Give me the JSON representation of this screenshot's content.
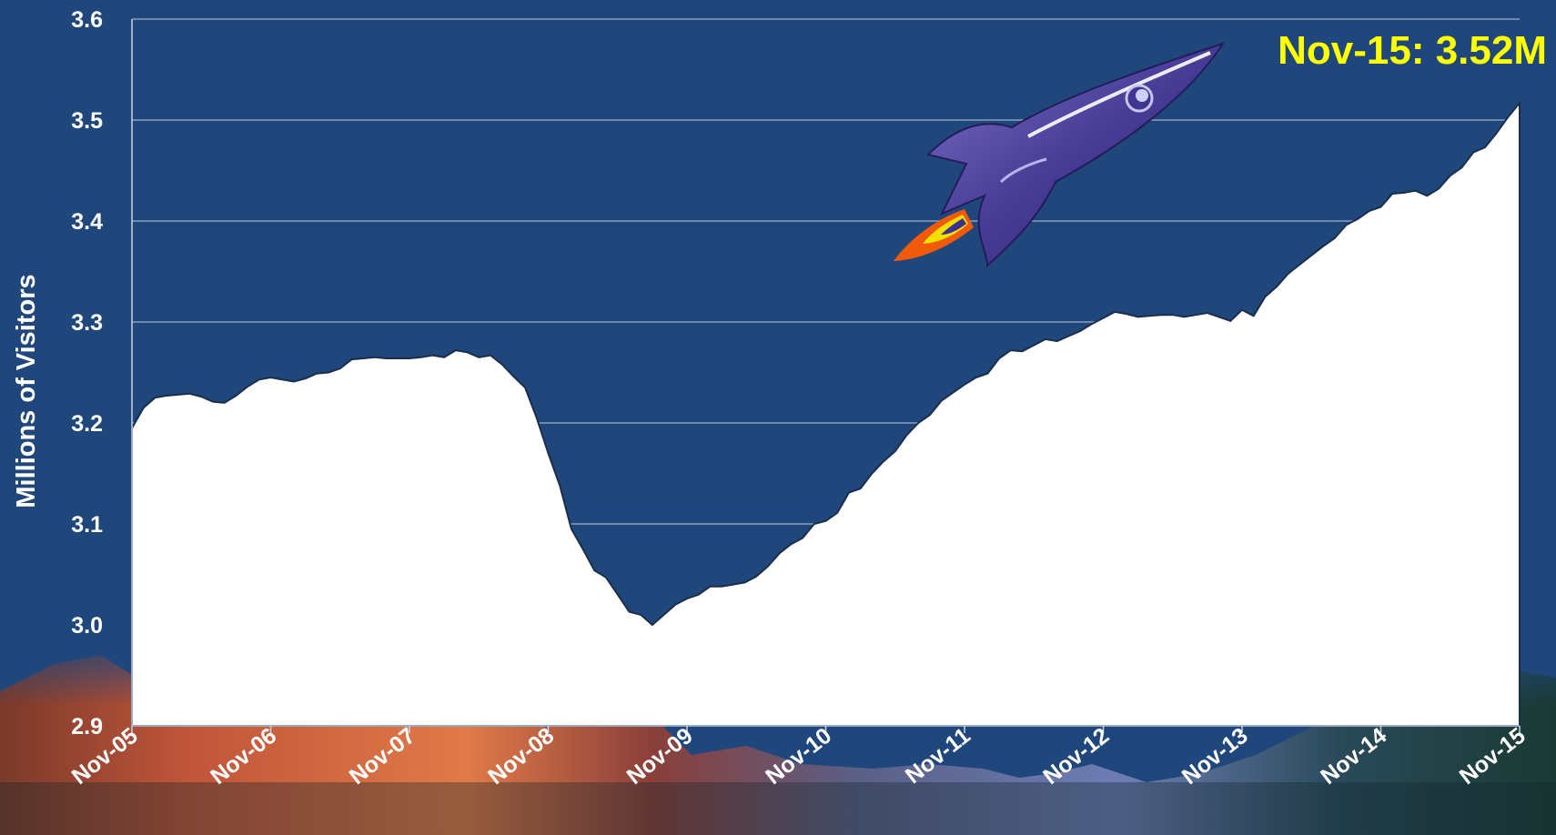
{
  "chart_data": {
    "type": "area",
    "title": "",
    "xlabel": "",
    "ylabel": "Millions of Visitors",
    "ylim": [
      2.9,
      3.6
    ],
    "yticks": [
      "2.9",
      "3.0",
      "3.1",
      "3.2",
      "3.3",
      "3.4",
      "3.5",
      "3.6"
    ],
    "xticks": [
      "Nov-05",
      "Nov-06",
      "Nov-07",
      "Nov-08",
      "Nov-09",
      "Nov-10",
      "Nov-11",
      "Nov-12",
      "Nov-13",
      "Nov-14",
      "Nov-15"
    ],
    "grid": true,
    "annotation": "Nov-15: 3.52M",
    "series": [
      {
        "values": [
          3.195,
          3.215,
          3.225,
          3.227,
          3.228,
          3.229,
          3.226,
          3.221,
          3.22,
          3.227,
          3.236,
          3.243,
          3.245,
          3.243,
          3.241,
          3.244,
          3.249,
          3.25,
          3.254,
          3.263,
          3.264,
          3.265,
          3.264,
          3.264,
          3.264,
          3.265,
          3.267,
          3.265,
          3.272,
          3.27,
          3.265,
          3.267,
          3.258,
          3.246,
          3.235,
          3.205,
          3.17,
          3.138,
          3.095,
          3.075,
          3.054,
          3.047,
          3.03,
          3.013,
          3.01,
          3.0,
          3.01,
          3.02,
          3.026,
          3.03,
          3.038,
          3.038,
          3.04,
          3.042,
          3.048,
          3.058,
          3.071,
          3.08,
          3.086,
          3.1,
          3.103,
          3.111,
          3.131,
          3.135,
          3.15,
          3.162,
          3.172,
          3.188,
          3.2,
          3.208,
          3.222,
          3.23,
          3.238,
          3.245,
          3.249,
          3.264,
          3.272,
          3.271,
          3.277,
          3.283,
          3.281,
          3.286,
          3.291,
          3.298,
          3.304,
          3.31,
          3.308,
          3.305,
          3.306,
          3.307,
          3.307,
          3.305,
          3.307,
          3.309,
          3.305,
          3.301,
          3.312,
          3.306,
          3.325,
          3.335,
          3.348,
          3.357,
          3.366,
          3.375,
          3.383,
          3.396,
          3.402,
          3.41,
          3.414,
          3.427,
          3.428,
          3.43,
          3.425,
          3.432,
          3.445,
          3.453,
          3.468,
          3.473,
          3.487,
          3.503,
          3.517
        ]
      }
    ]
  }
}
